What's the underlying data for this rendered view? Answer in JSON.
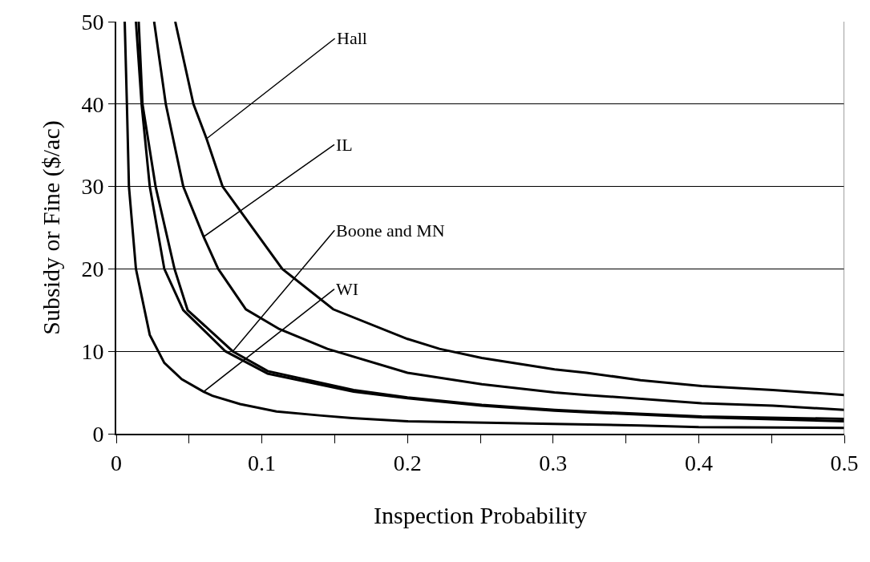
{
  "chart_data": {
    "type": "line",
    "xlabel": "Inspection Probability",
    "ylabel": "Subsidy or Fine ($/ac)",
    "xlim": [
      0,
      0.5
    ],
    "ylim": [
      0,
      50
    ],
    "xticks": [
      0,
      {
        "value": 0.05,
        "label": null
      },
      0.1,
      {
        "value": 0.15,
        "label": null
      },
      0.2,
      {
        "value": 0.25,
        "label": null
      },
      0.3,
      {
        "value": 0.35,
        "label": null
      },
      0.4,
      {
        "value": 0.45,
        "label": null
      },
      0.5
    ],
    "yticks": [
      0,
      10,
      20,
      30,
      40,
      50
    ],
    "grid": "y",
    "marker": "none",
    "line_style": "solid",
    "series": [
      {
        "color": "#000000",
        "x": [
          0.0405,
          0.053,
          0.062,
          0.073,
          0.114,
          0.149,
          0.2,
          0.222,
          0.251,
          0.301,
          0.323,
          0.36,
          0.402,
          0.451,
          0.5
        ],
        "values": [
          50,
          40,
          35.8,
          30,
          20,
          15.1,
          11.5,
          10.3,
          9.2,
          7.8,
          7.4,
          6.5,
          5.8,
          5.3,
          4.7
        ]
      },
      {
        "color": "#000000",
        "x": [
          0.026,
          0.034,
          0.046,
          0.06,
          0.07,
          0.089,
          0.112,
          0.145,
          0.2,
          0.251,
          0.301,
          0.323,
          0.402,
          0.451,
          0.5
        ],
        "values": [
          50,
          40,
          30,
          23.9,
          20,
          15.1,
          12.7,
          10.3,
          7.4,
          6,
          5,
          4.7,
          3.7,
          3.4,
          2.9
        ]
      },
      {
        "color": "#000000",
        "x": [
          0.0154,
          0.018,
          0.027,
          0.04,
          0.049,
          0.08,
          0.104,
          0.163,
          0.2,
          0.251,
          0.301,
          0.323,
          0.402,
          0.5
        ],
        "values": [
          50,
          40,
          30,
          20,
          15,
          10,
          7.6,
          5.3,
          4.4,
          3.5,
          2.9,
          2.7,
          2.1,
          1.8
        ]
      },
      {
        "color": "#000000",
        "x": [
          0.0135,
          0.0174,
          0.023,
          0.033,
          0.046,
          0.075,
          0.104,
          0.163,
          0.2,
          0.251,
          0.301,
          0.323,
          0.402,
          0.5
        ],
        "values": [
          50,
          40,
          30,
          20,
          15,
          10,
          7.3,
          5.1,
          4.3,
          3.4,
          2.8,
          2.6,
          2,
          1.5
        ]
      },
      {
        "color": "#000000",
        "x": [
          0.0058,
          0.0073,
          0.0087,
          0.0135,
          0.023,
          0.033,
          0.045,
          0.06,
          0.066,
          0.085,
          0.11,
          0.141,
          0.162,
          0.2,
          0.3,
          0.36,
          0.4,
          0.5
        ],
        "values": [
          50,
          40,
          30,
          20,
          12,
          8.6,
          6.6,
          5.1,
          4.6,
          3.6,
          2.7,
          2.2,
          1.9,
          1.5,
          1.2,
          1,
          0.8,
          0.7
        ]
      }
    ],
    "annotations": [
      {
        "text": "Hall",
        "x": 0.062,
        "y": 35.8
      },
      {
        "text": "IL",
        "x": 0.06,
        "y": 23.9
      },
      {
        "text": "Boone and MN",
        "x": 0.08,
        "y": 10
      },
      {
        "text": "WI",
        "x": 0.06,
        "y": 5.1
      }
    ]
  }
}
